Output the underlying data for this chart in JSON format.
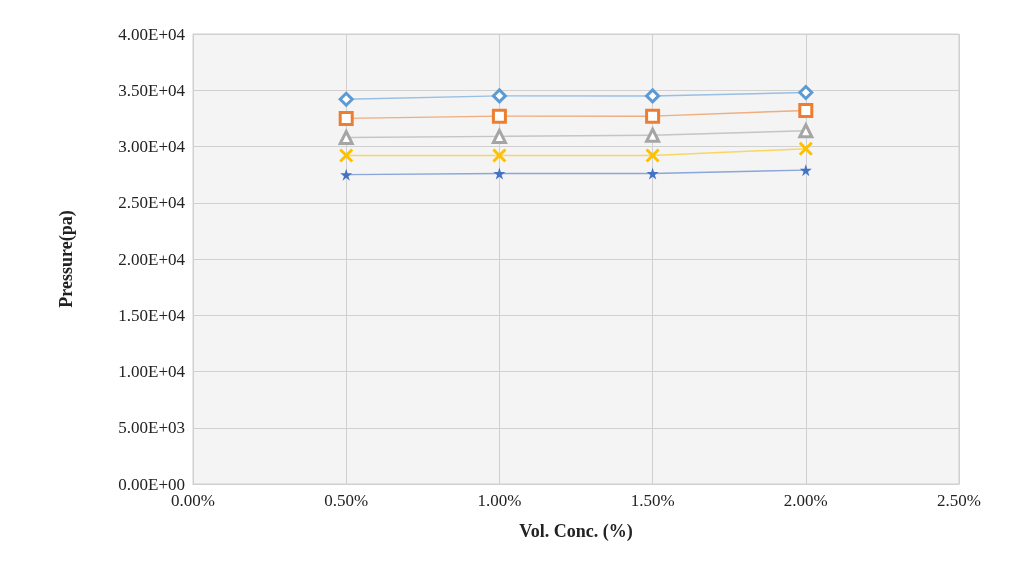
{
  "chart_data": {
    "type": "line",
    "xlabel": "Vol. Conc. (%)",
    "ylabel": "Pressure(pa)",
    "x": [
      0.5,
      1.0,
      1.5,
      2.0
    ],
    "series": [
      {
        "color": "#5b9bd5",
        "marker": "diamond",
        "values": [
          34200,
          34500,
          34500,
          34800
        ]
      },
      {
        "color": "#ed7d31",
        "marker": "square",
        "values": [
          32500,
          32700,
          32700,
          33200
        ]
      },
      {
        "color": "#a5a5a5",
        "marker": "triangle",
        "values": [
          30800,
          30900,
          31000,
          31400
        ]
      },
      {
        "color": "#ffc000",
        "marker": "cross",
        "values": [
          29200,
          29200,
          29200,
          29800
        ]
      },
      {
        "color": "#4472c4",
        "marker": "star",
        "values": [
          27500,
          27600,
          27600,
          27900
        ]
      }
    ],
    "xlim": [
      0,
      2.5
    ],
    "xticks": [
      {
        "value": 0,
        "label": "0.00%"
      },
      {
        "value": 0.5,
        "label": "0.50%"
      },
      {
        "value": 1.0,
        "label": "1.00%"
      },
      {
        "value": 1.5,
        "label": "1.50%"
      },
      {
        "value": 2.0,
        "label": "2.00%"
      },
      {
        "value": 2.5,
        "label": "2.50%"
      }
    ],
    "ylim": [
      0,
      40000
    ],
    "yticks": [
      {
        "value": 0,
        "label": "0.00E+00"
      },
      {
        "value": 5000,
        "label": "5.00E+03"
      },
      {
        "value": 10000,
        "label": "1.00E+04"
      },
      {
        "value": 15000,
        "label": "1.50E+04"
      },
      {
        "value": 20000,
        "label": "2.00E+04"
      },
      {
        "value": 25000,
        "label": "2.50E+04"
      },
      {
        "value": 30000,
        "label": "3.00E+04"
      },
      {
        "value": 35000,
        "label": "3.50E+04"
      },
      {
        "value": 40000,
        "label": "4.00E+04"
      }
    ],
    "grid": true
  }
}
